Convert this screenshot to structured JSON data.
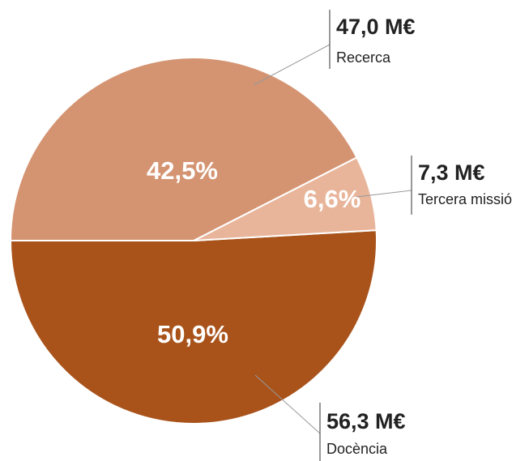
{
  "chart_data": {
    "type": "pie",
    "categories": [
      "Docència",
      "Tercera missió",
      "Recerca"
    ],
    "values": [
      56.3,
      7.3,
      47.0
    ],
    "value_labels": [
      "56,3 M€",
      "7,3 M€",
      "47,0 M€"
    ],
    "percentages": [
      50.9,
      6.6,
      42.5
    ],
    "percentage_labels": [
      "50,9%",
      "6,6%",
      "42,5%"
    ],
    "colors": [
      "#a9531b",
      "#e8b59b",
      "#d49472"
    ]
  }
}
